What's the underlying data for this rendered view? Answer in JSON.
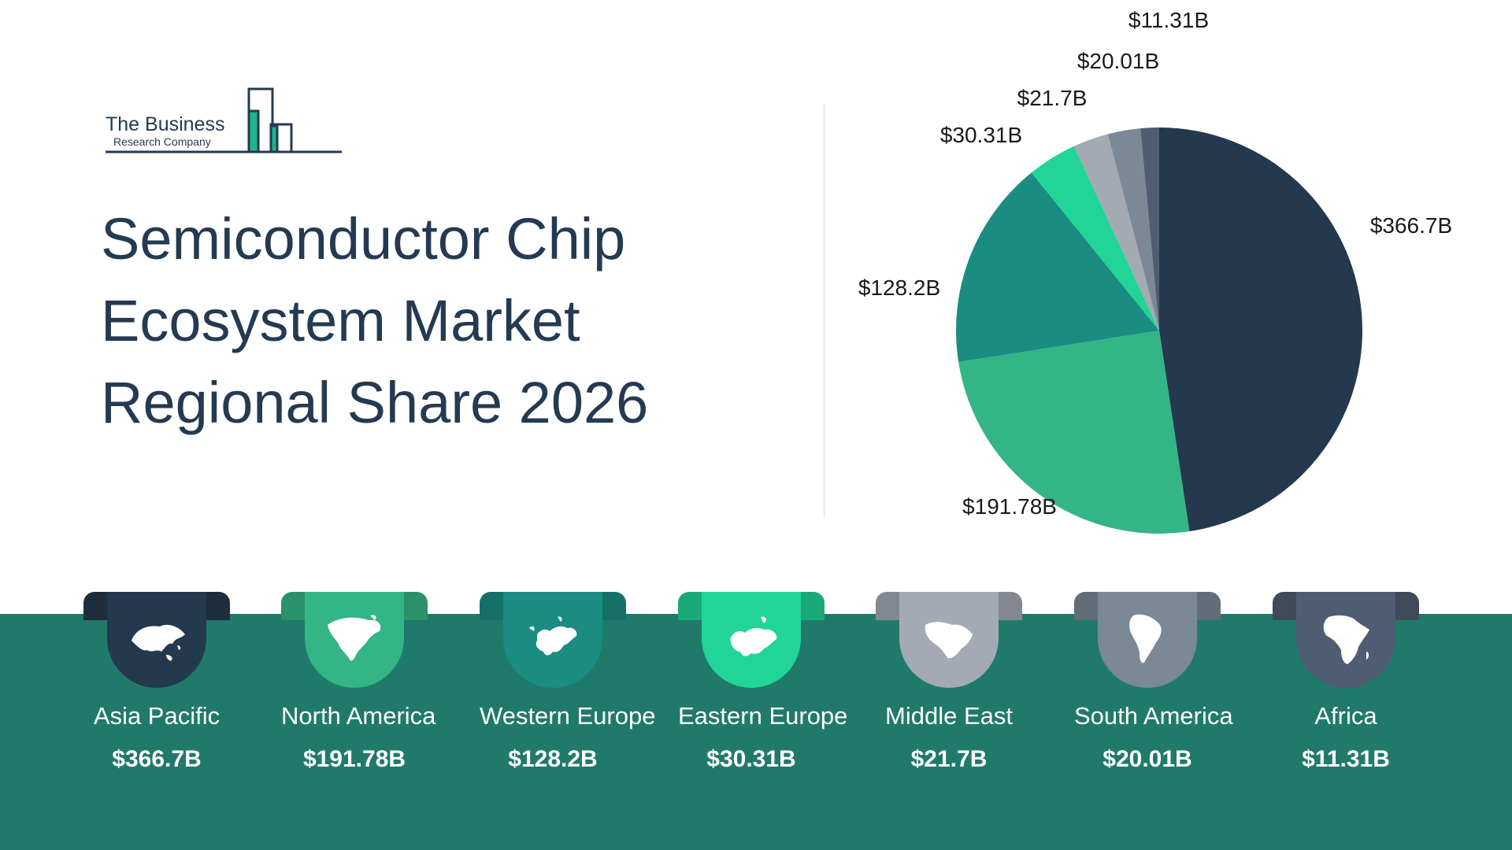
{
  "logo": {
    "name": "The Business",
    "sub": "Research Company"
  },
  "title_lines": [
    "Semiconductor Chip",
    "Ecosystem Market",
    "Regional Share 2026"
  ],
  "chart_data": {
    "type": "pie",
    "categories": [
      "Asia Pacific",
      "North America",
      "Western Europe",
      "Eastern Europe",
      "Middle East",
      "South America",
      "Africa"
    ],
    "values": [
      366.7,
      191.78,
      128.2,
      30.31,
      21.7,
      20.01,
      11.31
    ],
    "labels": [
      "$366.7B",
      "$191.78B",
      "$128.2B",
      "$30.31B",
      "$21.7B",
      "$20.01B",
      "$11.31B"
    ],
    "colors": [
      "#24384e",
      "#34b585",
      "#1b8c82",
      "#20d597",
      "#a4aab4",
      "#7b8896",
      "#4f5d72"
    ],
    "legend": "bottom"
  },
  "regions": [
    {
      "name": "Asia Pacific",
      "value": "$366.7B",
      "color": "#24384e",
      "icon": "asia-map-icon"
    },
    {
      "name": "North America",
      "value": "$191.78B",
      "color": "#34b585",
      "icon": "north-america-map-icon"
    },
    {
      "name": "Western Europe",
      "value": "$128.2B",
      "color": "#1b8c82",
      "icon": "western-europe-map-icon"
    },
    {
      "name": "Eastern Europe",
      "value": "$30.31B",
      "color": "#20d597",
      "icon": "eastern-europe-map-icon"
    },
    {
      "name": "Middle East",
      "value": "$21.7B",
      "color": "#a4aab4",
      "icon": "middle-east-map-icon"
    },
    {
      "name": "South America",
      "value": "$20.01B",
      "color": "#7b8896",
      "icon": "south-america-map-icon"
    },
    {
      "name": "Africa",
      "value": "$11.31B",
      "color": "#4f5d72",
      "icon": "africa-map-icon"
    }
  ]
}
